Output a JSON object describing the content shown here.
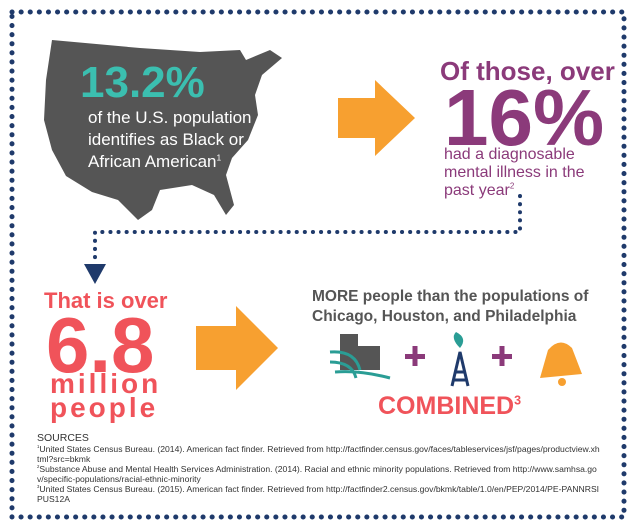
{
  "panel_1": {
    "stat": "13.2%",
    "lines": [
      "of the U.S. population",
      "identifies as Black or",
      "African American"
    ],
    "note": "1"
  },
  "panel_2": {
    "lead": "Of those, over",
    "stat": "16%",
    "lines": [
      "had a diagnosable",
      "mental illness in the",
      "past year"
    ],
    "note": "2"
  },
  "panel_3": {
    "lead": "That is over",
    "stat": "6.8",
    "lines": [
      "million",
      "people"
    ]
  },
  "panel_4": {
    "lines": [
      "MORE people than the populations of",
      "Chicago, Houston, and Philadelphia"
    ],
    "combined": "COMBINED",
    "note": "3"
  },
  "sources": {
    "heading": "SOURCES",
    "items": [
      {
        "note": "1",
        "text": "United States Census Bureau. (2014). American fact finder. Retrieved from http://factfinder.census.gov/faces/tableservices/jsf/pages/productview.xhtml?src=bkmk"
      },
      {
        "note": "2",
        "text": "Substance Abuse and Mental Health Services Administration. (2014).  Racial and ethnic minority populations. Retrieved from http://www.samhsa.gov/specific-populations/racial-ethnic-minority"
      },
      {
        "note": "3",
        "text": "United States Census Bureau. (2015). American fact finder. Retrieved from http://factfinder2.census.gov/bkmk/table/1.0/en/PEP/2014/PE-PANNRSIPUS12A"
      }
    ]
  }
}
